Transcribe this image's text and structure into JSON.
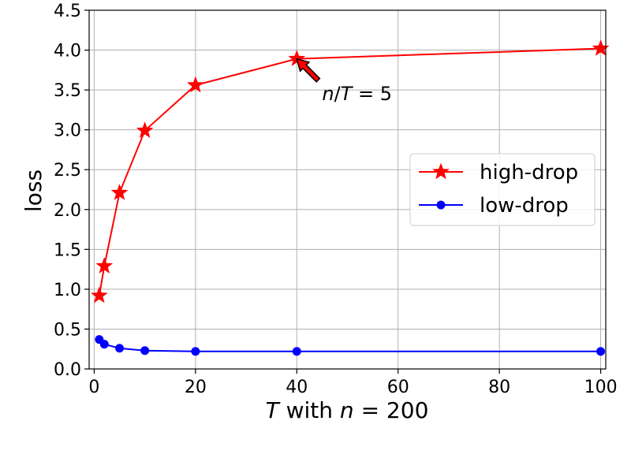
{
  "chart_data": {
    "type": "line",
    "xlabel_parts": [
      "T",
      " with ",
      "n",
      " = 200"
    ],
    "ylabel": "loss",
    "xlim": [
      -1,
      101
    ],
    "ylim": [
      0,
      4.5
    ],
    "xticks": [
      0,
      20,
      40,
      60,
      80,
      100
    ],
    "yticks": [
      "0.0",
      "0.5",
      "1.0",
      "1.5",
      "2.0",
      "2.5",
      "3.0",
      "3.5",
      "4.0",
      "4.5"
    ],
    "grid": true,
    "legend_position": "center-right",
    "series": [
      {
        "name": "high-drop",
        "color": "#ff0000",
        "marker": "star",
        "x": [
          1,
          2,
          5,
          10,
          20,
          40,
          100
        ],
        "y": [
          0.92,
          1.29,
          2.21,
          2.99,
          3.56,
          3.89,
          4.02
        ]
      },
      {
        "name": "low-drop",
        "color": "#0000ff",
        "marker": "circle",
        "x": [
          1,
          2,
          5,
          10,
          20,
          40,
          100
        ],
        "y": [
          0.37,
          0.31,
          0.26,
          0.23,
          0.22,
          0.22,
          0.22
        ]
      }
    ],
    "annotation": {
      "text_parts": [
        "n",
        "/",
        "T",
        " = 5"
      ],
      "target": [
        40,
        3.89
      ],
      "text_at": [
        45,
        3.45
      ]
    }
  }
}
